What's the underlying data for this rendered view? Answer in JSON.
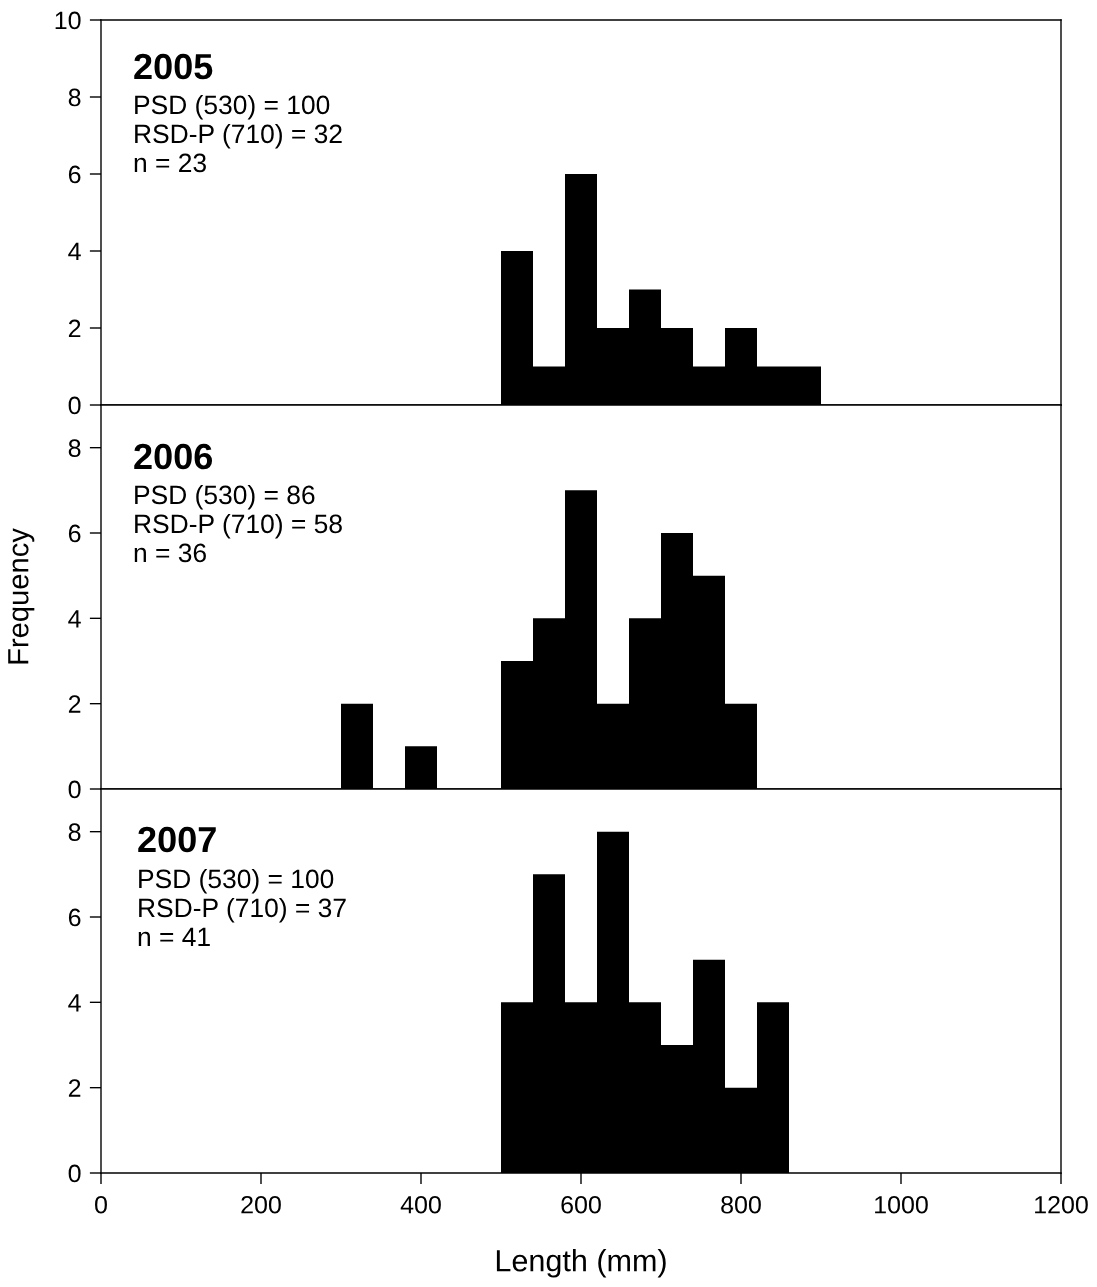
{
  "chart_data": [
    {
      "type": "histogram",
      "title": "2005",
      "annotations": [
        "PSD (530) = 100",
        "RSD-P (710) = 32",
        "n = 23"
      ],
      "bins": [
        500,
        540,
        580,
        620,
        660,
        700,
        740,
        780,
        820,
        860,
        900
      ],
      "values": [
        4,
        1,
        6,
        2,
        3,
        2,
        1,
        2,
        1,
        1
      ],
      "color": "#000000",
      "xlim": [
        0,
        1200
      ],
      "ylim": [
        0,
        10
      ],
      "yticks": [
        0,
        2,
        4,
        6,
        8,
        10
      ],
      "tick_labels": "y"
    },
    {
      "type": "histogram",
      "title": "2006",
      "annotations": [
        "PSD (530) = 86",
        "RSD-P (710) = 58",
        "n = 36"
      ],
      "ylabel": "Frequency",
      "bins": [
        300,
        340,
        380,
        420,
        460,
        500,
        540,
        580,
        620,
        660,
        700,
        740,
        780,
        820
      ],
      "values": [
        2,
        0,
        1,
        0,
        0,
        3,
        4,
        7,
        2,
        4,
        6,
        5,
        2
      ],
      "color": "#000000",
      "xlim": [
        0,
        1200
      ],
      "ylim": [
        0,
        9
      ],
      "yticks": [
        0,
        2,
        4,
        6,
        8
      ],
      "tick_labels": "y"
    },
    {
      "type": "histogram",
      "title": "2007",
      "annotations": [
        "PSD (530) = 100",
        "RSD-P (710) = 37",
        "n = 41"
      ],
      "xlabel": "Length (mm)",
      "bins": [
        500,
        540,
        580,
        620,
        660,
        700,
        740,
        780,
        820,
        860
      ],
      "values": [
        4,
        7,
        4,
        8,
        4,
        3,
        5,
        2,
        4
      ],
      "color": "#000000",
      "xlim": [
        0,
        1200
      ],
      "ylim": [
        0,
        9
      ],
      "xticks": [
        0,
        200,
        400,
        600,
        800,
        1000,
        1200
      ],
      "yticks": [
        0,
        2,
        4,
        6,
        8
      ]
    }
  ]
}
